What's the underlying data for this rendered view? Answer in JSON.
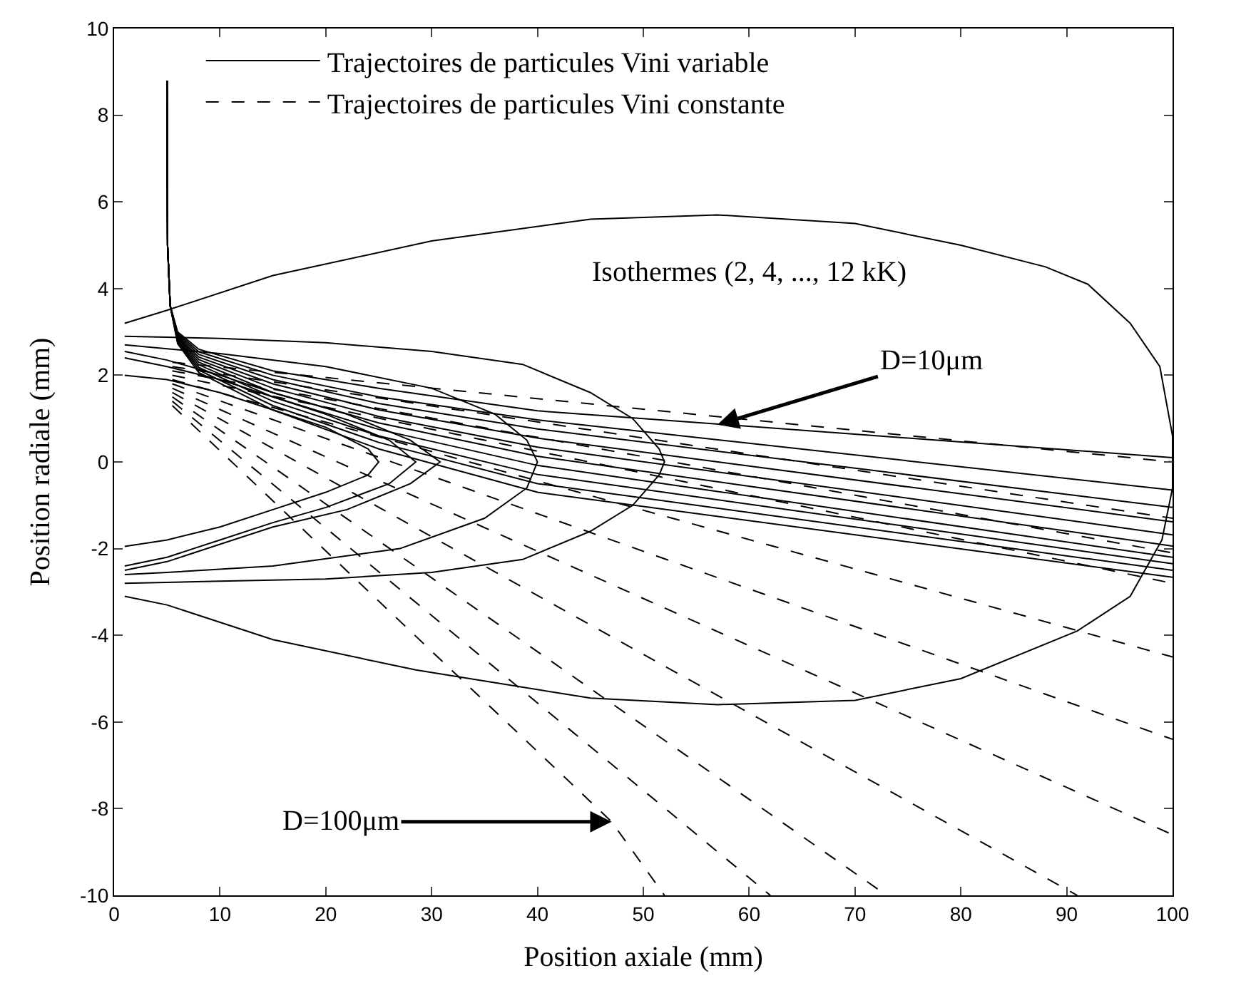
{
  "chart_data": {
    "type": "line",
    "xlabel": "Position axiale (mm)",
    "ylabel": "Position radiale (mm)",
    "xlim": [
      0,
      100
    ],
    "xticks": [
      0,
      10,
      20,
      30,
      40,
      50,
      60,
      70,
      80,
      90,
      100
    ],
    "ylim": [
      -10,
      10
    ],
    "yticks": [
      -10,
      -8,
      -6,
      -4,
      -2,
      0,
      2,
      4,
      6,
      8,
      10
    ],
    "legend": "top left",
    "annotations": [
      "Isothermes (2, 4, ..., 12 kK)",
      {
        "text": "D=10μm",
        "x": 57,
        "y": 0.86
      },
      {
        "text": "D=100μm",
        "x": 47,
        "y": -8.3
      }
    ],
    "series": [
      {
        "name": "Trajectoires de particules Vini variable",
        "color": "#000000",
        "line_style": "solid",
        "x": [
          5,
          5.05,
          5.3,
          6,
          8,
          15,
          25,
          40,
          100
        ],
        "values": [
          8.8,
          5,
          3.6,
          3.0,
          2.6,
          2.1,
          1.7,
          1.18,
          0.1
        ]
      },
      {
        "color": "#000000",
        "line_style": "solid",
        "x": [
          5,
          5.05,
          5.3,
          6,
          8,
          15,
          25,
          40,
          100
        ],
        "values": [
          8.8,
          5,
          3.6,
          2.97,
          2.54,
          2.0,
          1.5,
          0.97,
          -0.65
        ]
      },
      {
        "color": "#000000",
        "line_style": "solid",
        "x": [
          5,
          5.05,
          5.3,
          6,
          8,
          15,
          25,
          40,
          100
        ],
        "values": [
          8.8,
          5,
          3.6,
          2.94,
          2.48,
          1.9,
          1.35,
          0.76,
          -1.05
        ]
      },
      {
        "color": "#000000",
        "line_style": "solid",
        "x": [
          5,
          5.05,
          5.3,
          6,
          8,
          15,
          25,
          40,
          100
        ],
        "values": [
          8.8,
          5,
          3.6,
          2.91,
          2.42,
          1.8,
          1.2,
          0.55,
          -1.38
        ]
      },
      {
        "color": "#000000",
        "line_style": "solid",
        "x": [
          5,
          5.05,
          5.3,
          6,
          8,
          15,
          25,
          40,
          100
        ],
        "values": [
          8.8,
          5,
          3.6,
          2.88,
          2.36,
          1.7,
          1.05,
          0.34,
          -1.68
        ]
      },
      {
        "color": "#000000",
        "line_style": "solid",
        "x": [
          5,
          5.05,
          5.3,
          6,
          8,
          15,
          25,
          40,
          100
        ],
        "values": [
          8.8,
          5,
          3.6,
          2.85,
          2.3,
          1.6,
          0.9,
          0.13,
          -1.94
        ]
      },
      {
        "color": "#000000",
        "line_style": "solid",
        "x": [
          5,
          5.05,
          5.3,
          6,
          8,
          15,
          25,
          40,
          100
        ],
        "values": [
          8.8,
          5,
          3.6,
          2.82,
          2.24,
          1.5,
          0.75,
          -0.08,
          -2.2
        ]
      },
      {
        "color": "#000000",
        "line_style": "solid",
        "x": [
          5,
          5.05,
          5.3,
          6,
          8,
          15,
          25,
          40,
          100
        ],
        "values": [
          8.8,
          5,
          3.6,
          2.79,
          2.18,
          1.4,
          0.6,
          -0.29,
          -2.35
        ]
      },
      {
        "color": "#000000",
        "line_style": "solid",
        "x": [
          5,
          5.05,
          5.3,
          6,
          8,
          15,
          25,
          40,
          100
        ],
        "values": [
          8.8,
          5,
          3.6,
          2.76,
          2.12,
          1.3,
          0.45,
          -0.5,
          -2.5
        ]
      },
      {
        "color": "#000000",
        "line_style": "solid",
        "x": [
          5,
          5.05,
          5.3,
          6,
          8,
          15,
          25,
          40,
          100
        ],
        "values": [
          8.8,
          5,
          3.6,
          2.73,
          2.06,
          1.2,
          0.3,
          -0.7,
          -2.66
        ]
      },
      {
        "name": "Trajectoires de particules Vini constante",
        "color": "#000000",
        "line_style": "dashed",
        "x": [
          5.5,
          100
        ],
        "values": [
          2.3,
          0.0
        ]
      },
      {
        "color": "#000000",
        "line_style": "dashed",
        "x": [
          5.5,
          100
        ],
        "values": [
          2.2,
          -1.3
        ]
      },
      {
        "color": "#000000",
        "line_style": "dashed",
        "x": [
          5.5,
          100
        ],
        "values": [
          2.1,
          -2.1
        ]
      },
      {
        "color": "#000000",
        "line_style": "dashed",
        "x": [
          5.5,
          100
        ],
        "values": [
          2.0,
          -2.8
        ]
      },
      {
        "color": "#000000",
        "line_style": "dashed",
        "x": [
          5.5,
          100
        ],
        "values": [
          1.9,
          -4.5
        ]
      },
      {
        "color": "#000000",
        "line_style": "dashed",
        "x": [
          5.5,
          100
        ],
        "values": [
          1.8,
          -6.4
        ]
      },
      {
        "color": "#000000",
        "line_style": "dashed",
        "x": [
          5.5,
          100
        ],
        "values": [
          1.7,
          -8.6
        ]
      },
      {
        "color": "#000000",
        "line_style": "dashed",
        "x": [
          5.5,
          91
        ],
        "values": [
          1.6,
          -10
        ]
      },
      {
        "color": "#000000",
        "line_style": "dashed",
        "x": [
          5.5,
          73
        ],
        "values": [
          1.5,
          -10
        ]
      },
      {
        "color": "#000000",
        "line_style": "dashed",
        "x": [
          5.5,
          62
        ],
        "values": [
          1.4,
          -10
        ]
      },
      {
        "color": "#000000",
        "line_style": "dashed",
        "x": [
          5.5,
          47,
          52
        ],
        "values": [
          1.3,
          -8.3,
          -10
        ]
      },
      {
        "color": "#000000",
        "line_style": "solid",
        "x": [
          1,
          5,
          15,
          30,
          45,
          57,
          70,
          80,
          88,
          92,
          96,
          98.8,
          100,
          100,
          99,
          96,
          91,
          80,
          70,
          57,
          45,
          28.5,
          15,
          5,
          1
        ],
        "values": [
          3.2,
          3.5,
          4.3,
          5.1,
          5.6,
          5.7,
          5.5,
          5.0,
          4.5,
          4.1,
          3.2,
          2.2,
          0.6,
          -0.6,
          -1.8,
          -3.1,
          -3.9,
          -5.0,
          -5.5,
          -5.6,
          -5.45,
          -4.8,
          -4.1,
          -3.3,
          -3.1
        ]
      },
      {
        "color": "#000000",
        "line_style": "solid",
        "x": [
          1,
          10,
          20,
          30,
          38.6,
          45,
          49,
          51.5,
          52,
          51.5,
          49,
          45,
          38.6,
          30,
          20,
          10,
          1
        ],
        "values": [
          2.9,
          2.85,
          2.75,
          2.55,
          2.25,
          1.6,
          1.0,
          0.3,
          0,
          -0.3,
          -1.0,
          -1.6,
          -2.25,
          -2.55,
          -2.7,
          -2.75,
          -2.8
        ]
      },
      {
        "color": "#000000",
        "line_style": "solid",
        "x": [
          1,
          10,
          20,
          30,
          36,
          39,
          40,
          39,
          35,
          27,
          15,
          5,
          1
        ],
        "values": [
          2.7,
          2.5,
          2.2,
          1.7,
          1.1,
          0.5,
          0,
          -0.6,
          -1.3,
          -2.0,
          -2.4,
          -2.55,
          -2.6
        ]
      },
      {
        "color": "#000000",
        "line_style": "solid",
        "x": [
          1,
          5,
          10,
          15,
          22,
          28,
          30.8,
          28,
          22,
          15,
          10,
          5,
          1
        ],
        "values": [
          2.55,
          2.35,
          2.0,
          1.6,
          1.1,
          0.5,
          0,
          -0.5,
          -1.1,
          -1.5,
          -1.9,
          -2.3,
          -2.5
        ]
      },
      {
        "color": "#000000",
        "line_style": "solid",
        "x": [
          1,
          5,
          10,
          15,
          20,
          26,
          28.5,
          26,
          20,
          15,
          10,
          5,
          1
        ],
        "values": [
          2.4,
          2.2,
          1.9,
          1.5,
          1.1,
          0.5,
          0,
          -0.5,
          -1.05,
          -1.4,
          -1.8,
          -2.2,
          -2.4
        ]
      },
      {
        "color": "#000000",
        "line_style": "solid",
        "x": [
          1,
          5,
          10,
          15,
          20,
          24,
          25,
          24,
          20,
          15,
          10,
          5,
          1
        ],
        "values": [
          2.0,
          1.9,
          1.6,
          1.2,
          0.8,
          0.3,
          0,
          -0.3,
          -0.7,
          -1.1,
          -1.5,
          -1.8,
          -1.95
        ]
      }
    ]
  }
}
